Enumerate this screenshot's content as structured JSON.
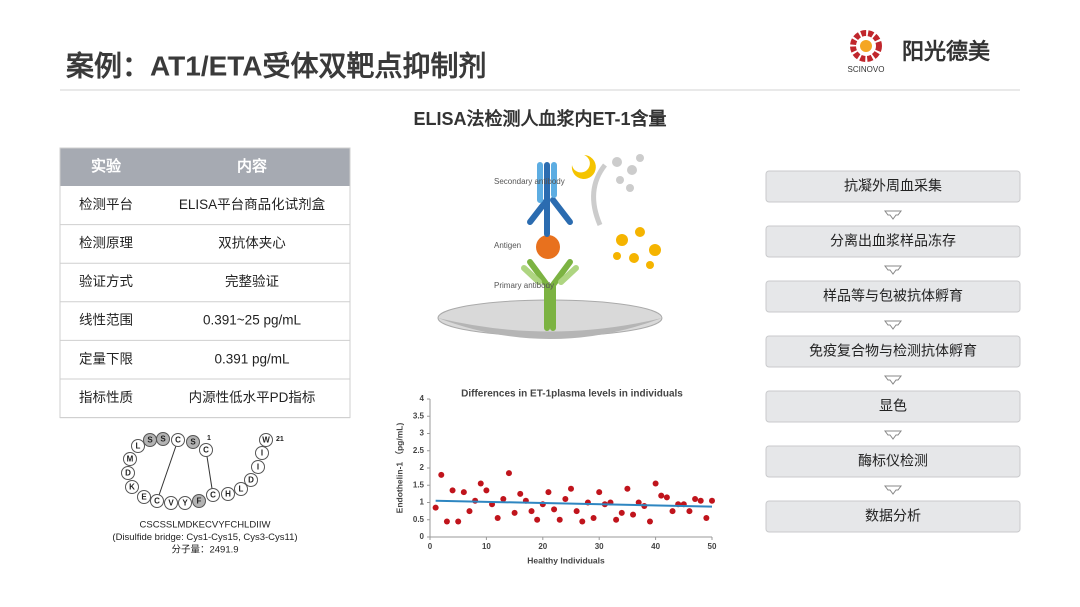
{
  "header": {
    "title": "案例：AT1/ETA受体双靶点抑制剂",
    "brand": "阳光德美",
    "brand_en": "SCINOVO"
  },
  "subtitle": "ELISA法检测人血浆内ET-1含量",
  "table": {
    "columns": [
      "实验",
      "内容"
    ],
    "rows": [
      [
        "检测平台",
        "ELISA平台商品化试剂盒"
      ],
      [
        "检测原理",
        "双抗体夹心"
      ],
      [
        "验证方式",
        "完整验证"
      ],
      [
        "线性范围",
        "0.391~25 pg/mL"
      ],
      [
        "定量下限",
        "0.391 pg/mL"
      ],
      [
        "指标性质",
        "内源性低水平PD指标"
      ]
    ]
  },
  "peptide": {
    "residues": [
      "C",
      "S",
      "C",
      "S",
      "S",
      "L",
      "M",
      "D",
      "K",
      "E",
      "C",
      "V",
      "Y",
      "F",
      "C",
      "H",
      "L",
      "D",
      "I",
      "I",
      "W"
    ],
    "start_number": 1,
    "end_number": 21,
    "sequence": "CSCSSLMDKECVYFCHLDIIW",
    "note": "(Disulfide bridge: Cys1-Cys15, Cys3-Cys11)",
    "mass": "分子量：2491.9"
  },
  "elisa": {
    "labels": [
      "Secondary antibody",
      "Antigen",
      "Primary antibody"
    ]
  },
  "chart_data": {
    "type": "scatter",
    "title": "Differences in ET-1plasma levels in individuals",
    "x_label": "Healthy Individuals",
    "y_label": "Endothelin-1 （pg/mL)",
    "xlim": [
      0,
      50
    ],
    "xticks": [
      0,
      10,
      20,
      30,
      40,
      50
    ],
    "ylim": [
      0,
      4
    ],
    "yticks": [
      0,
      0.5,
      1,
      1.5,
      2,
      2.5,
      3,
      3.5,
      4
    ],
    "series": [
      {
        "color": "#c0141c",
        "x": [
          1,
          2,
          3,
          4,
          5,
          6,
          7,
          8,
          9,
          10,
          11,
          12,
          13,
          14,
          15,
          16,
          17,
          18,
          19,
          20,
          21,
          22,
          23,
          24,
          25,
          26,
          27,
          28,
          29,
          30,
          31,
          32,
          33,
          34,
          35,
          36,
          37,
          38,
          39,
          40,
          41,
          42,
          43,
          44,
          45,
          46,
          47,
          48,
          49,
          50
        ],
        "values": [
          0.85,
          1.8,
          0.45,
          1.35,
          0.45,
          1.3,
          0.75,
          1.05,
          1.55,
          1.35,
          0.95,
          0.55,
          1.1,
          1.85,
          0.7,
          1.25,
          1.05,
          0.75,
          0.5,
          0.95,
          1.3,
          0.8,
          0.5,
          1.1,
          1.4,
          0.75,
          0.45,
          1.0,
          0.55,
          1.3,
          0.95,
          1.0,
          0.5,
          0.7,
          1.4,
          0.65,
          1.0,
          0.9,
          0.45,
          1.55,
          1.2,
          1.15,
          0.75,
          0.95,
          0.95,
          0.75,
          1.1,
          1.05,
          0.55,
          1.05
        ]
      }
    ],
    "trendline": {
      "color": "#2e86c1",
      "x": [
        1,
        50
      ],
      "values": [
        1.05,
        0.88
      ]
    }
  },
  "flow": {
    "steps": [
      "抗凝外周血采集",
      "分离出血浆样品冻存",
      "样品等与包被抗体孵育",
      "免疫复合物与检测抗体孵育",
      "显色",
      "酶标仪检测",
      "数据分析"
    ]
  }
}
